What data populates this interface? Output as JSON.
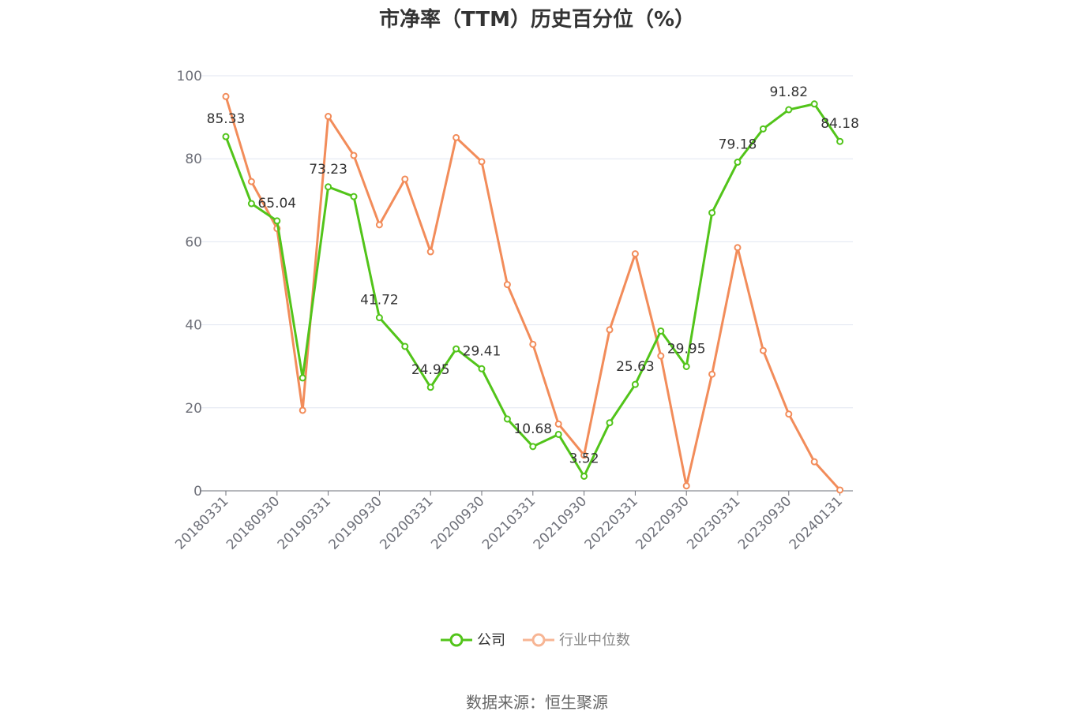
{
  "chart_data": {
    "type": "line",
    "title": "市净率（TTM）历史百分位（%）",
    "source": "数据来源：恒生聚源",
    "ylim": [
      0,
      100
    ],
    "y_ticks": [
      0,
      20,
      40,
      60,
      80,
      100
    ],
    "x_tick_labels": [
      "20180331",
      "20180930",
      "20190331",
      "20190930",
      "20200331",
      "20200930",
      "20210331",
      "20210930",
      "20220331",
      "20220930",
      "20230331",
      "20230930",
      "20240131"
    ],
    "grid": true,
    "legend_position": "bottom-center",
    "series": [
      {
        "name": "公司",
        "color": "#52c41a",
        "values": [
          85.33,
          69.2,
          65.04,
          27.2,
          73.23,
          70.9,
          41.72,
          34.8,
          24.95,
          34.2,
          29.41,
          17.3,
          10.68,
          13.6,
          3.52,
          16.4,
          25.63,
          38.5,
          29.95,
          67.0,
          79.18,
          87.2,
          91.82,
          93.2,
          84.18
        ],
        "labels": [
          "85.33",
          "",
          "65.04",
          "",
          "73.23",
          "",
          "41.72",
          "",
          "24.95",
          "",
          "29.41",
          "",
          "10.68",
          "",
          "3.52",
          "",
          "25.63",
          "",
          "29.95",
          "",
          "79.18",
          "",
          "91.82",
          "",
          "84.18"
        ]
      },
      {
        "name": "行业中位数",
        "color": "#f28c5a",
        "values": [
          95.0,
          74.5,
          63.2,
          19.4,
          90.2,
          80.8,
          64.1,
          75.1,
          57.6,
          85.1,
          79.3,
          49.7,
          35.3,
          16.1,
          8.6,
          38.8,
          57.1,
          32.5,
          1.2,
          28.1,
          58.6,
          33.8,
          18.5,
          7.0,
          0.2
        ]
      }
    ]
  }
}
